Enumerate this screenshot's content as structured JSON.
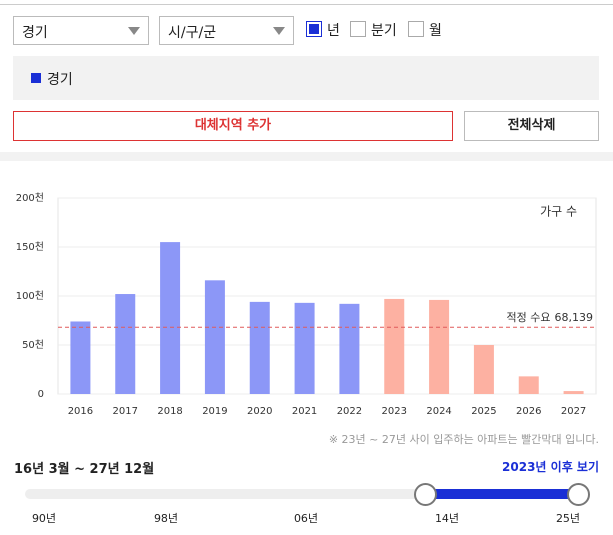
{
  "controls": {
    "region": "경기",
    "district": "시/구/군",
    "periods": [
      {
        "label": "년",
        "checked": true
      },
      {
        "label": "분기",
        "checked": false
      },
      {
        "label": "월",
        "checked": false
      }
    ],
    "selected": "경기",
    "add_button": "대체지역 추가",
    "clear_button": "전체삭제"
  },
  "chart_data": {
    "type": "bar",
    "legend": "가구 수",
    "categories": [
      "2016",
      "2017",
      "2018",
      "2019",
      "2020",
      "2021",
      "2022",
      "2023",
      "2024",
      "2025",
      "2026",
      "2027"
    ],
    "values": [
      74000,
      102000,
      155000,
      116000,
      94000,
      93000,
      92000,
      97000,
      96000,
      50000,
      18000,
      3000
    ],
    "colors": [
      "#8c97f7",
      "#8c97f7",
      "#8c97f7",
      "#8c97f7",
      "#8c97f7",
      "#8c97f7",
      "#8c97f7",
      "#fdb1a2",
      "#fdb1a2",
      "#fdb1a2",
      "#fdb1a2",
      "#fdb1a2"
    ],
    "ylim": [
      0,
      200000
    ],
    "yticks": [
      0,
      {
        "value": 50000,
        "label": "50천"
      },
      {
        "value": 100000,
        "label": "100천"
      },
      {
        "value": 150000,
        "label": "150천"
      },
      {
        "value": 200000,
        "label": "200천"
      }
    ],
    "grid": true,
    "reference": {
      "label": "적정 수요",
      "value": 68139,
      "value_label": "68,139",
      "color": "#e05a5a"
    },
    "note": "※ 23년 ~ 27년 사이 입주하는 아파트는 빨간막대 입니다."
  },
  "range": {
    "text": "16년 3월 ~ 27년 12월",
    "link": "2023년 이후 보기",
    "labels": [
      "90년",
      "98년",
      "06년",
      "14년",
      "25년"
    ]
  }
}
